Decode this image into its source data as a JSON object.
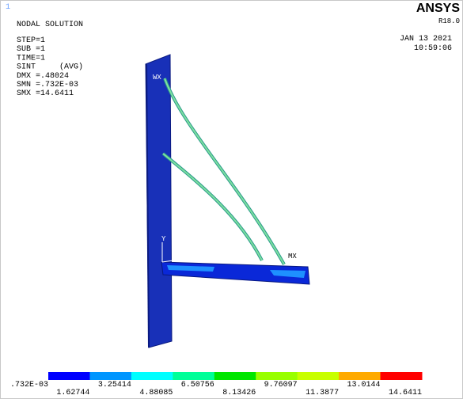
{
  "header": {
    "index": "1",
    "title": "NODAL SOLUTION",
    "product": "ANSYS",
    "version": "R18.0",
    "date": "JAN 13 2021",
    "time": "10:59:06"
  },
  "info": [
    "STEP=1",
    "SUB =1",
    "TIME=1",
    "SINT     (AVG)",
    "DMX =.48024",
    "SMN =.732E-03",
    "SMX =14.6411"
  ],
  "model_labels": [
    "WX",
    "MX",
    "Y"
  ],
  "legend": {
    "colors": [
      "#0000ff",
      "#0096ff",
      "#00ffff",
      "#00ff99",
      "#00e600",
      "#99ff00",
      "#c8ff00",
      "#ffaa00",
      "#ff0000"
    ],
    "labels": [
      ".732E-03",
      "1.62744",
      "3.25414",
      "4.88085",
      "6.50756",
      "8.13426",
      "9.76097",
      "11.3877",
      "13.0144",
      "14.6411"
    ]
  }
}
